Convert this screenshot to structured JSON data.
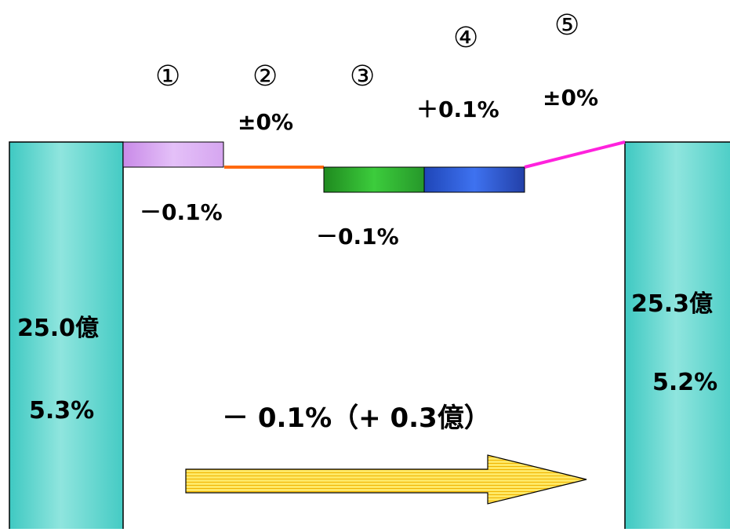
{
  "chart_data": {
    "type": "waterfall",
    "start": {
      "amount_label": "25.0億",
      "rate_label": "5.3%",
      "rate": 5.3
    },
    "end": {
      "amount_label": "25.3億",
      "rate_label": "5.2%",
      "rate": 5.2
    },
    "steps": [
      {
        "marker": "①",
        "label": "－0.1%",
        "delta": -0.1,
        "color": "#d7a9f2"
      },
      {
        "marker": "②",
        "label": "±0%",
        "delta": 0.0,
        "color": "#ff6a10"
      },
      {
        "marker": "③",
        "label": "－0.1%",
        "delta": -0.1,
        "color": "#2fa82f"
      },
      {
        "marker": "④",
        "label": "＋0.1%",
        "delta": 0.1,
        "color": "#2f5fd8"
      },
      {
        "marker": "⑤",
        "label": "±0%",
        "delta": 0.0,
        "color": "#ff22dd"
      }
    ],
    "total_label": "－ 0.1%（+ 0.3億）",
    "colors": {
      "pillar": "#48d1cc",
      "pillar_light": "#8fe5de",
      "arrow": "#ffe04a"
    }
  }
}
